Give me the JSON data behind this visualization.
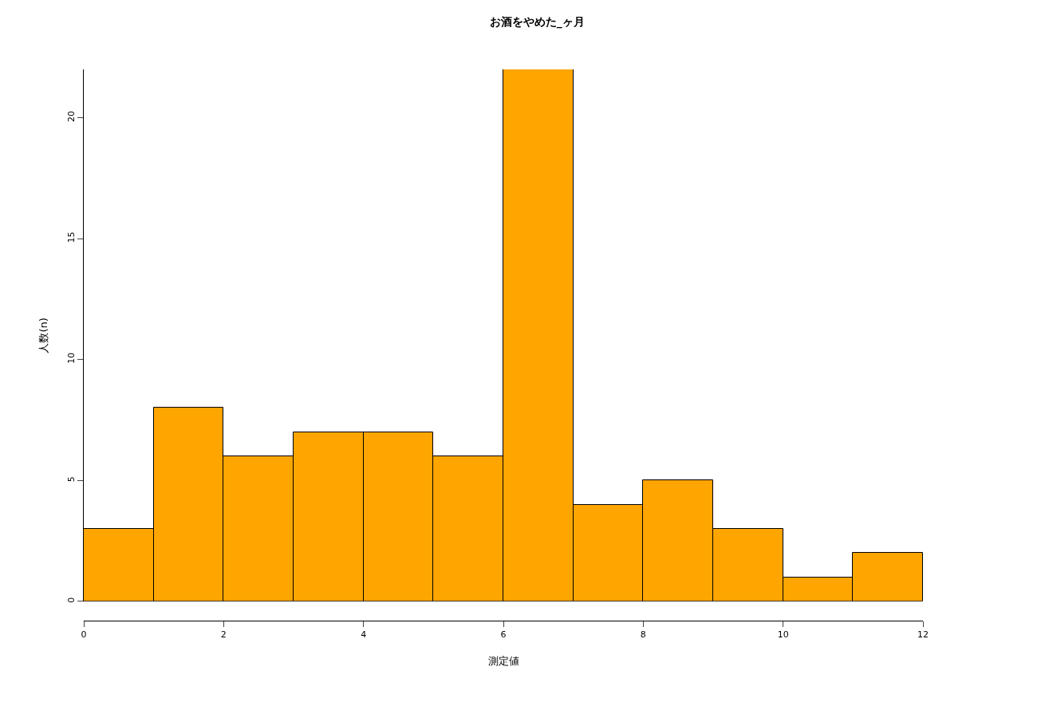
{
  "chart_data": {
    "type": "histogram",
    "title": "お酒をやめた_ヶ月",
    "xlabel": "測定値",
    "ylabel": "人数(n)",
    "bins": [
      0,
      1,
      2,
      3,
      4,
      5,
      6,
      7,
      8,
      9,
      10,
      11,
      12
    ],
    "values": [
      3,
      8,
      6,
      7,
      7,
      6,
      22,
      4,
      5,
      3,
      1,
      2
    ],
    "color": "#ffa500",
    "xlim": [
      0,
      12
    ],
    "xticks": [
      0,
      2,
      4,
      6,
      8,
      10,
      12
    ],
    "ylim": [
      0,
      22
    ],
    "yticks": [
      0,
      5,
      10,
      15,
      20
    ]
  }
}
